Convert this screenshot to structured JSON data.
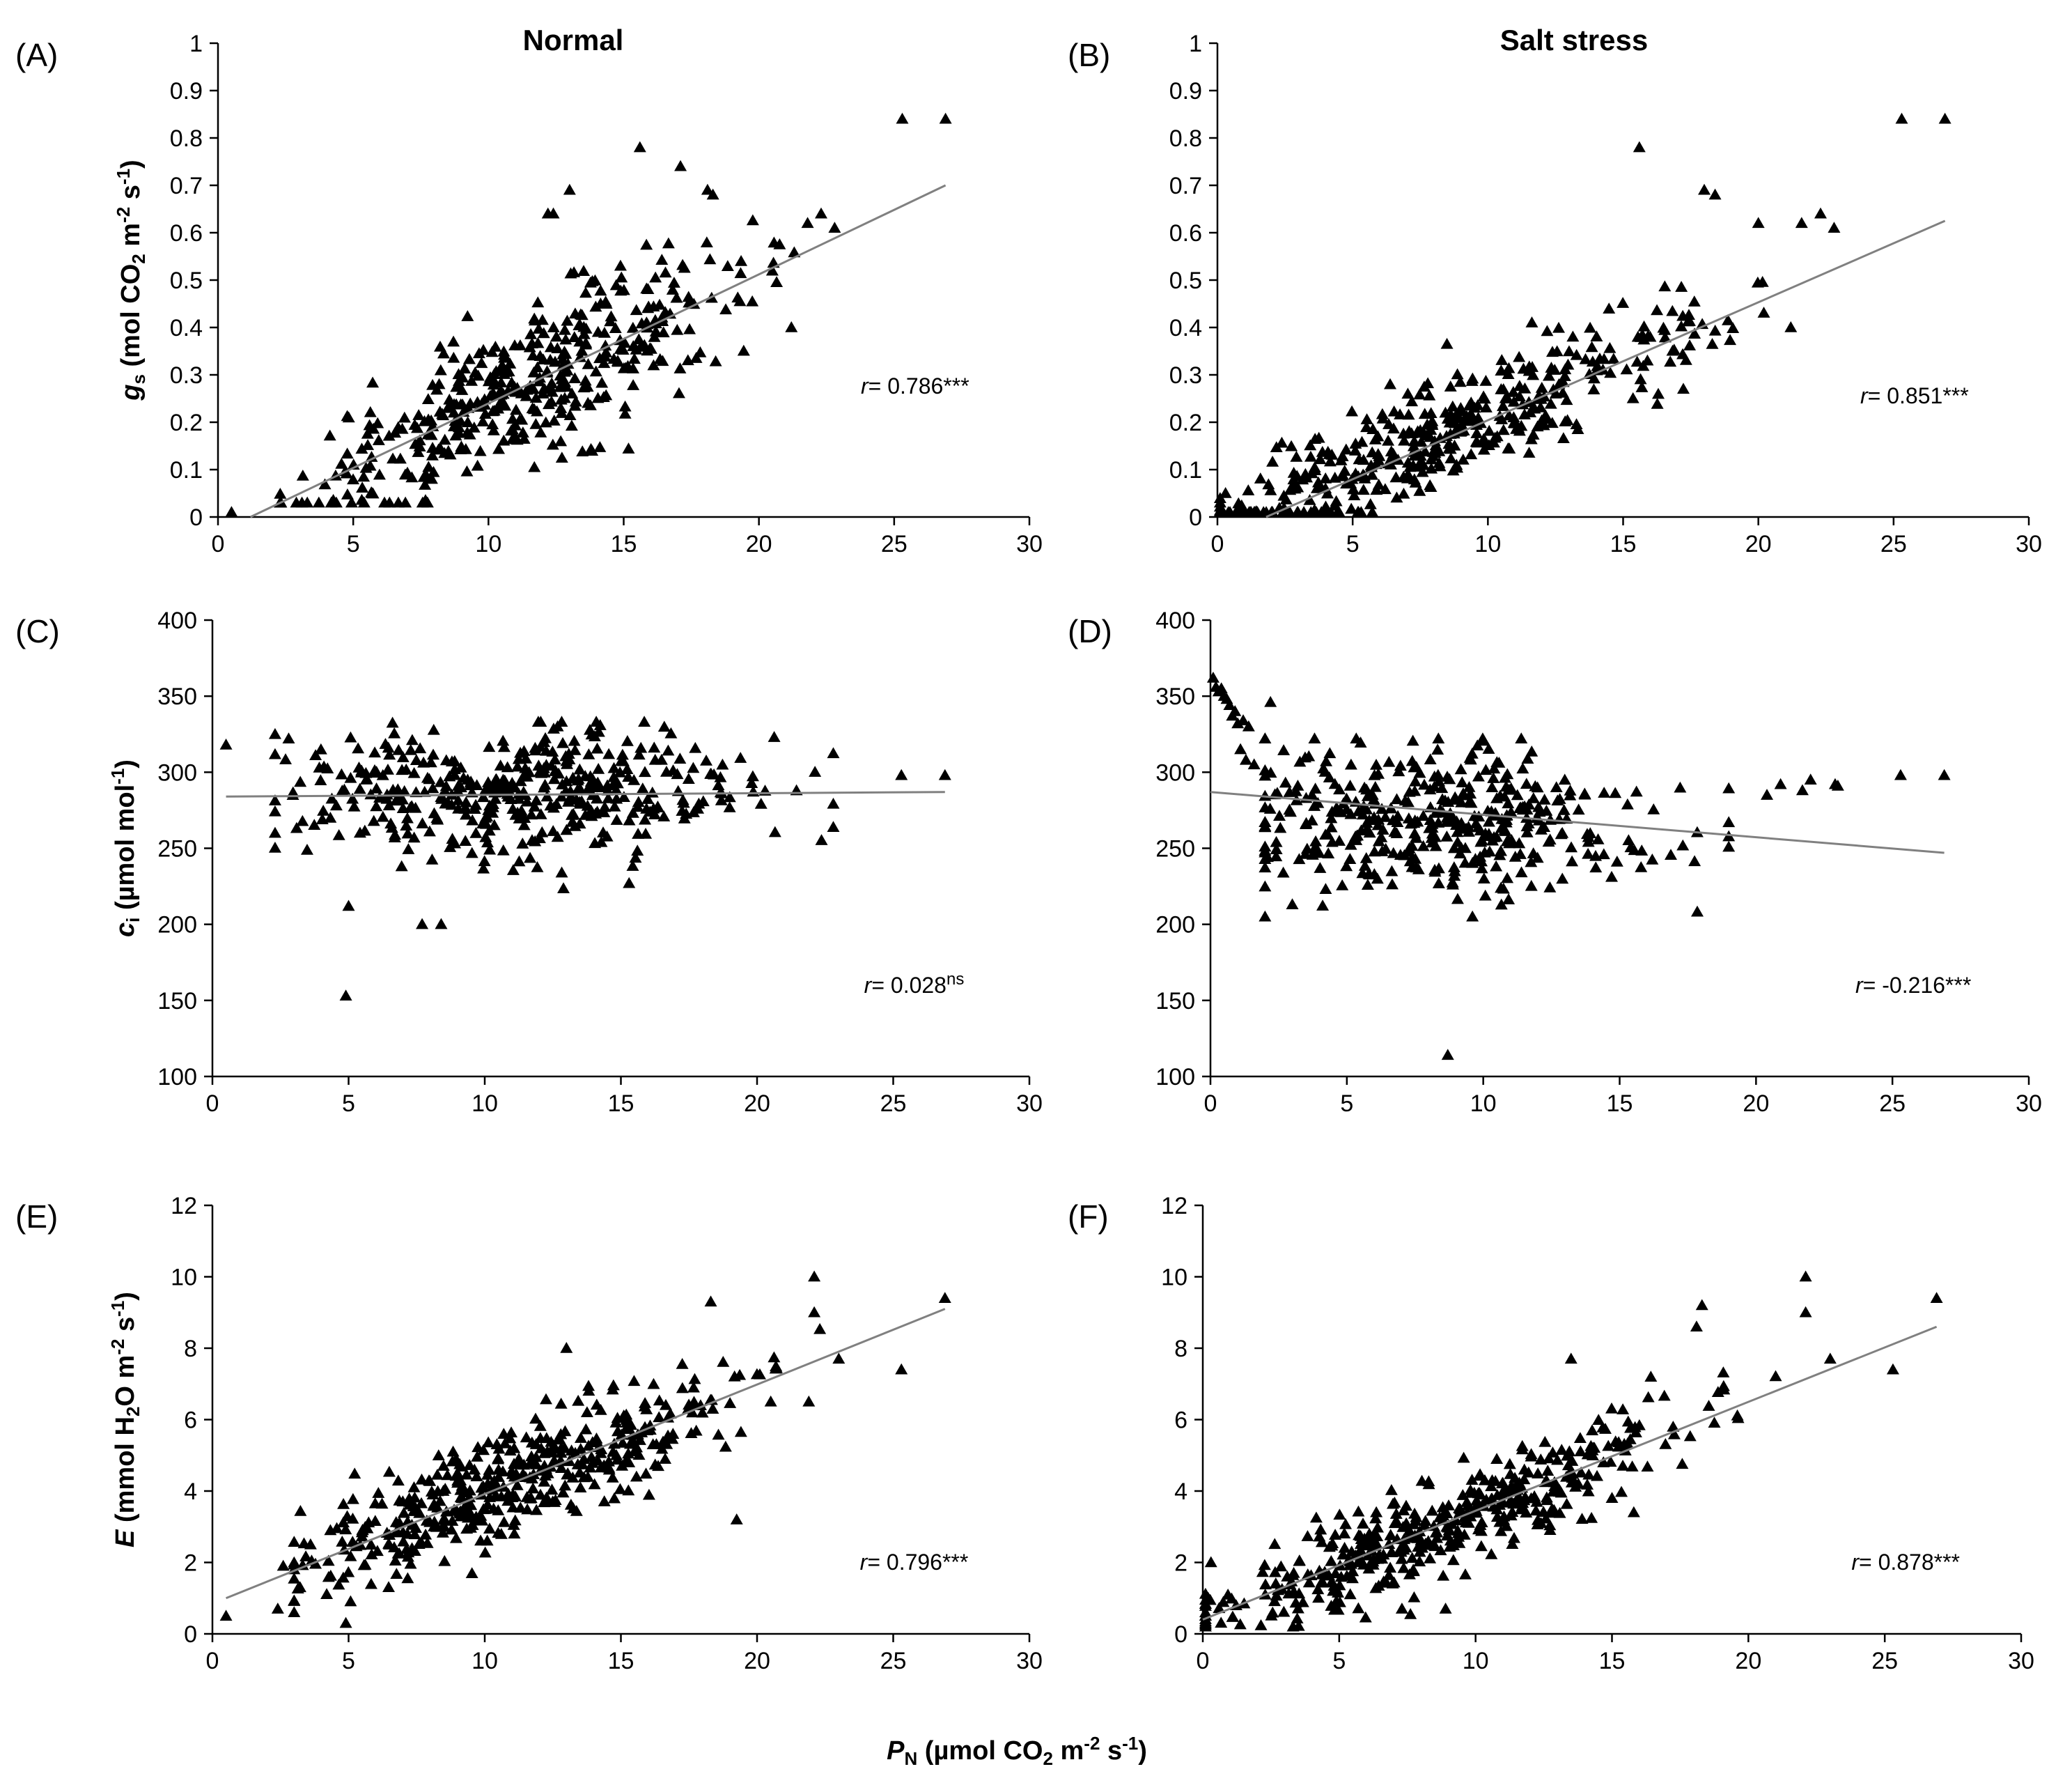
{
  "figure": {
    "columns": [
      "Normal",
      "Salt stress"
    ],
    "xlabel": {
      "main": "P",
      "sub": "N",
      "rest1": " (µmol CO",
      "sub2": "2",
      "rest2": " m",
      "sup1": "-2",
      "rest3": " s",
      "sup2": "-1",
      "rest4": ")"
    }
  },
  "chart_data": [
    {
      "id": "A",
      "label": "(A)",
      "type": "scatter",
      "title": "Normal",
      "ylabel_parts": {
        "sym": "g",
        "sub": "s",
        "rest": " (mol CO",
        "sub2": "2",
        "rest2": " m",
        "sup1": "-2",
        "rest3": " s",
        "sup2": "-1",
        "rest4": ")"
      },
      "xlim": [
        0,
        30
      ],
      "ylim": [
        0,
        1
      ],
      "xticks": [
        "0",
        "5",
        "10",
        "15",
        "20",
        "25",
        "30"
      ],
      "yticks": [
        "0",
        "0.1",
        "0.2",
        "0.3",
        "0.4",
        "0.5",
        "0.6",
        "0.7",
        "0.8",
        "0.9",
        "1"
      ],
      "trend": {
        "x": [
          1.2,
          26.9
        ],
        "y": [
          0.0,
          0.7
        ]
      },
      "r_text": "r",
      "r_value": "= 0.786",
      "r_sig": "***",
      "r_sig_super": false,
      "r_pos": [
        25,
        0.26
      ],
      "gen": {
        "n": 430,
        "xmean": 11.5,
        "xsd": 4.2,
        "xmin": 2.3,
        "xmax": 22.5,
        "slope": 0.0272,
        "intercept": -0.033,
        "noise": 0.075,
        "ymin": 0.03,
        "ymax": 0.78
      },
      "extra_points": [
        [
          0.5,
          0.01
        ],
        [
          25.3,
          0.84
        ],
        [
          26.9,
          0.84
        ],
        [
          15.6,
          0.78
        ],
        [
          17.1,
          0.74
        ],
        [
          13.0,
          0.69
        ],
        [
          12.2,
          0.64
        ],
        [
          12.4,
          0.64
        ],
        [
          18.1,
          0.69
        ],
        [
          18.3,
          0.68
        ],
        [
          22.3,
          0.64
        ],
        [
          22.8,
          0.61
        ],
        [
          21.8,
          0.62
        ],
        [
          21.2,
          0.4
        ]
      ]
    },
    {
      "id": "B",
      "label": "(B)",
      "type": "scatter",
      "title": "Salt stress",
      "ylabel_parts": null,
      "xlim": [
        0,
        30
      ],
      "ylim": [
        0,
        1
      ],
      "xticks": [
        "0",
        "5",
        "10",
        "15",
        "20",
        "25",
        "30"
      ],
      "yticks": [
        "0",
        "0.1",
        "0.2",
        "0.3",
        "0.4",
        "0.5",
        "0.6",
        "0.7",
        "0.8",
        "0.9",
        "1"
      ],
      "trend": {
        "x": [
          1.8,
          26.9
        ],
        "y": [
          0.0,
          0.625
        ]
      },
      "r_text": "r",
      "r_value": "= 0.851",
      "r_sig": "***",
      "r_sig_super": false,
      "r_pos": [
        25,
        0.24
      ],
      "gen": {
        "n": 440,
        "xmean": 8.5,
        "xsd": 4.8,
        "xmin": 0.1,
        "xmax": 23.0,
        "slope": 0.0245,
        "intercept": -0.035,
        "noise": 0.06,
        "ymin": 0.01,
        "ymax": 0.68
      },
      "extra_points": [
        [
          0.1,
          0.03
        ],
        [
          0.3,
          0.05
        ],
        [
          0.2,
          0.01
        ],
        [
          25.3,
          0.84
        ],
        [
          26.9,
          0.84
        ],
        [
          15.6,
          0.78
        ],
        [
          18.0,
          0.69
        ],
        [
          18.4,
          0.68
        ],
        [
          22.3,
          0.64
        ],
        [
          21.6,
          0.62
        ],
        [
          22.8,
          0.61
        ],
        [
          20.0,
          0.62
        ],
        [
          21.2,
          0.4
        ]
      ]
    },
    {
      "id": "C",
      "label": "(C)",
      "type": "scatter",
      "title": "",
      "ylabel_parts": {
        "sym": "c",
        "sub": "i",
        "rest": " (µmol mol",
        "sup": "-1",
        "rest2": ")"
      },
      "xlim": [
        0,
        30
      ],
      "ylim": [
        100,
        400
      ],
      "xticks": [
        "0",
        "5",
        "10",
        "15",
        "20",
        "25",
        "30"
      ],
      "yticks": [
        "100",
        "150",
        "200",
        "250",
        "300",
        "350",
        "400"
      ],
      "trend": {
        "x": [
          0.5,
          26.9
        ],
        "y": [
          284,
          287
        ]
      },
      "r_text": "r",
      "r_value": "= 0.028",
      "r_sig": "ns",
      "r_sig_super": true,
      "r_pos": [
        25,
        155
      ],
      "gen": {
        "n": 430,
        "xmean": 11.0,
        "xsd": 4.3,
        "xmin": 2.3,
        "xmax": 22.8,
        "slope": 0.0,
        "intercept": 286,
        "noise": 22,
        "ymin": 218,
        "ymax": 333
      },
      "extra_points": [
        [
          0.5,
          318
        ],
        [
          4.9,
          153
        ],
        [
          5.0,
          212
        ],
        [
          7.7,
          200
        ],
        [
          8.4,
          200
        ],
        [
          25.3,
          298
        ],
        [
          26.9,
          298
        ],
        [
          2.3,
          260
        ],
        [
          2.8,
          322
        ],
        [
          15.3,
          227
        ]
      ]
    },
    {
      "id": "D",
      "label": "(D)",
      "type": "scatter",
      "title": "",
      "ylabel_parts": null,
      "xlim": [
        0,
        30
      ],
      "ylim": [
        100,
        400
      ],
      "xticks": [
        "0",
        "5",
        "10",
        "15",
        "20",
        "25",
        "30"
      ],
      "yticks": [
        "100",
        "150",
        "200",
        "250",
        "300",
        "350",
        "400"
      ],
      "trend": {
        "x": [
          0.0,
          26.9
        ],
        "y": [
          287,
          247
        ]
      },
      "r_text": "r",
      "r_value": "= -0.216",
      "r_sig": "***",
      "r_sig_super": false,
      "r_pos": [
        25,
        155
      ],
      "gen": {
        "n": 420,
        "xmean": 8.5,
        "xsd": 3.8,
        "xmin": 2.0,
        "xmax": 19.0,
        "slope": 0.0,
        "intercept": 268,
        "noise": 25,
        "ymin": 205,
        "ymax": 322
      },
      "extra_points": [
        [
          0.1,
          362
        ],
        [
          0.2,
          356
        ],
        [
          0.3,
          353
        ],
        [
          0.4,
          355
        ],
        [
          0.5,
          350
        ],
        [
          0.7,
          344
        ],
        [
          0.8,
          337
        ],
        [
          1.0,
          332
        ],
        [
          1.2,
          334
        ],
        [
          1.4,
          330
        ],
        [
          0.9,
          340
        ],
        [
          0.6,
          348
        ],
        [
          1.1,
          315
        ],
        [
          1.3,
          308
        ],
        [
          1.6,
          305
        ],
        [
          2.2,
          346
        ],
        [
          3.0,
          213
        ],
        [
          8.7,
          114
        ],
        [
          25.3,
          298
        ],
        [
          26.9,
          298
        ],
        [
          22.0,
          295
        ],
        [
          22.9,
          292
        ],
        [
          21.7,
          288
        ],
        [
          20.4,
          285
        ],
        [
          20.9,
          292
        ],
        [
          23.0,
          291
        ]
      ]
    },
    {
      "id": "E",
      "label": "(E)",
      "type": "scatter",
      "title": "",
      "ylabel_parts": {
        "sym": "E",
        "sub": "",
        "rest": " (mmol H",
        "sub2": "2",
        "rest2": "O m",
        "sup1": "-2",
        "rest3": " s",
        "sup2": "-1",
        "rest4": ")"
      },
      "xlim": [
        0,
        30
      ],
      "ylim": [
        0,
        12
      ],
      "xticks": [
        "0",
        "5",
        "10",
        "15",
        "20",
        "25",
        "30"
      ],
      "yticks": [
        "0",
        "2",
        "4",
        "6",
        "8",
        "10",
        "12"
      ],
      "trend": {
        "x": [
          0.5,
          26.9
        ],
        "y": [
          1.0,
          9.1
        ]
      },
      "r_text": "r",
      "r_value": "= 0.796",
      "r_sig": "***",
      "r_sig_super": false,
      "r_pos": [
        25,
        1.8
      ],
      "gen": {
        "n": 440,
        "xmean": 11.0,
        "xsd": 4.3,
        "xmin": 3.0,
        "xmax": 22.5,
        "slope": 0.307,
        "intercept": 0.85,
        "noise": 0.8,
        "ymin": 0.6,
        "ymax": 8.6
      },
      "extra_points": [
        [
          0.5,
          0.5
        ],
        [
          4.9,
          0.3
        ],
        [
          2.4,
          0.7
        ],
        [
          22.1,
          10.0
        ],
        [
          22.1,
          9.0
        ],
        [
          26.9,
          9.4
        ],
        [
          25.3,
          7.4
        ],
        [
          18.3,
          9.3
        ],
        [
          23.0,
          7.7
        ],
        [
          21.9,
          6.5
        ],
        [
          13.0,
          8.0
        ],
        [
          2.6,
          1.9
        ]
      ]
    },
    {
      "id": "F",
      "label": "(F)",
      "type": "scatter",
      "title": "",
      "ylabel_parts": null,
      "xlim": [
        0,
        30
      ],
      "ylim": [
        0,
        12
      ],
      "xticks": [
        "0",
        "5",
        "10",
        "15",
        "20",
        "25",
        "30"
      ],
      "yticks": [
        "0",
        "2",
        "4",
        "6",
        "8",
        "10",
        "12"
      ],
      "trend": {
        "x": [
          0.0,
          26.9
        ],
        "y": [
          0.4,
          8.6
        ]
      },
      "r_text": "r",
      "r_value": "= 0.878",
      "r_sig": "***",
      "r_sig_super": false,
      "r_pos": [
        25,
        1.8
      ],
      "gen": {
        "n": 440,
        "xmean": 8.5,
        "xsd": 4.6,
        "xmin": 0.1,
        "xmax": 21.0,
        "slope": 0.31,
        "intercept": 0.35,
        "noise": 0.62,
        "ymin": 0.2,
        "ymax": 8.3
      },
      "extra_points": [
        [
          0.2,
          1.0
        ],
        [
          0.3,
          2.0
        ],
        [
          0.1,
          0.5
        ],
        [
          22.1,
          10.0
        ],
        [
          22.1,
          9.0
        ],
        [
          26.9,
          9.4
        ],
        [
          25.3,
          7.4
        ],
        [
          18.3,
          9.2
        ],
        [
          18.1,
          8.6
        ],
        [
          23.0,
          7.7
        ],
        [
          15.0,
          3.8
        ],
        [
          15.8,
          3.4
        ],
        [
          13.5,
          7.7
        ],
        [
          7.3,
          0.7
        ],
        [
          8.9,
          0.7
        ]
      ]
    }
  ]
}
